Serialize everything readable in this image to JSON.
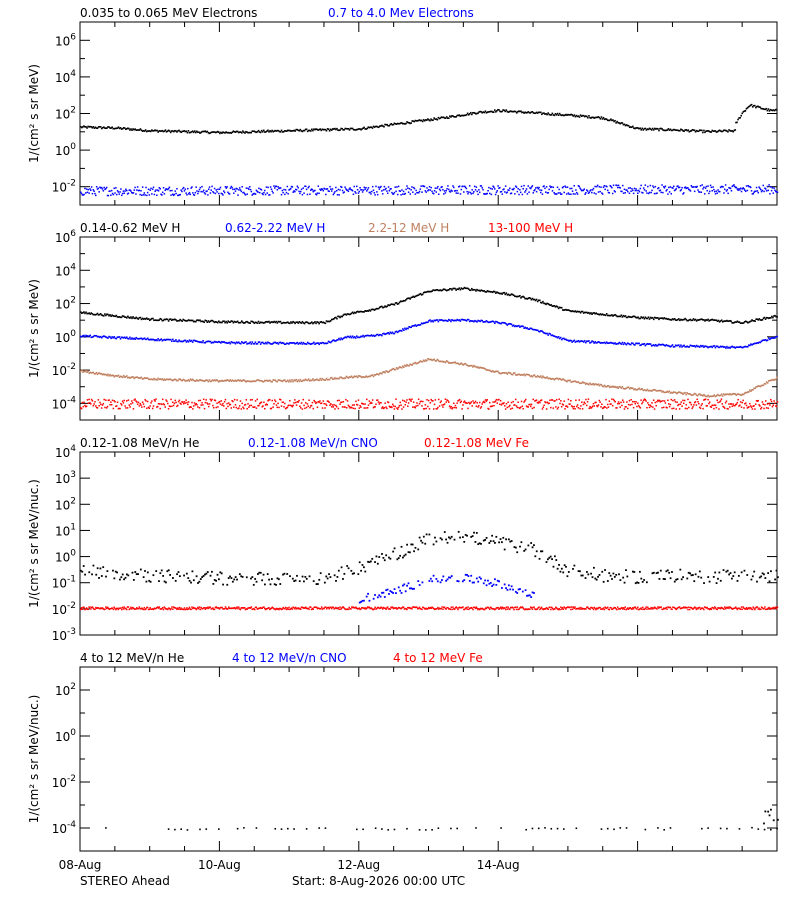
{
  "chart_data": [
    {
      "type": "scatter",
      "ylabel": "1/(cm² s sr MeV)",
      "yscale": "log",
      "ylim_log10": [
        -3,
        7
      ],
      "major_ticks": [
        {
          "exp": -2,
          "label": "10",
          "sup": "-2"
        },
        {
          "exp": 0,
          "label": "10",
          "sup": "0"
        },
        {
          "exp": 2,
          "label": "10",
          "sup": "2"
        },
        {
          "exp": 4,
          "label": "10",
          "sup": "4"
        },
        {
          "exp": 6,
          "label": "10",
          "sup": "6"
        }
      ],
      "series": [
        {
          "name": "0.035 to 0.065 MeV Electrons",
          "color": "#000000",
          "style": "line",
          "x": [
            0,
            0.5,
            1,
            2,
            2.5,
            3,
            4,
            4.5,
            5.2,
            5.7,
            6,
            7,
            7.5,
            8,
            8.5,
            9,
            9.4
          ],
          "y": [
            1.3,
            1.25,
            1.1,
            1.0,
            1.05,
            1.1,
            1.2,
            1.45,
            1.8,
            2.1,
            2.2,
            1.95,
            1.8,
            1.2,
            1.15,
            1.05,
            1.1
          ]
        },
        {
          "name": "",
          "color": "#000000",
          "style": "line",
          "x": [
            9.4,
            9.5,
            9.6,
            9.7,
            9.8,
            9.9,
            10.0
          ],
          "y": [
            1.5,
            2.1,
            2.5,
            2.4,
            2.3,
            2.2,
            2.2
          ]
        },
        {
          "name": "0.7 to 4.0 Mev Electrons",
          "color": "#0000ff",
          "style": "band",
          "x": [
            0,
            10
          ],
          "y": [
            -2.2,
            -2.1
          ],
          "spread": 0.25
        }
      ]
    },
    {
      "type": "scatter",
      "ylabel": "1/(cm² s sr MeV)",
      "yscale": "log",
      "ylim_log10": [
        -5,
        6
      ],
      "major_ticks": [
        {
          "exp": -4,
          "label": "10",
          "sup": "-4"
        },
        {
          "exp": -2,
          "label": "10",
          "sup": "-2"
        },
        {
          "exp": 0,
          "label": "10",
          "sup": "0"
        },
        {
          "exp": 2,
          "label": "10",
          "sup": "2"
        },
        {
          "exp": 4,
          "label": "10",
          "sup": "4"
        },
        {
          "exp": 6,
          "label": "10",
          "sup": "6"
        }
      ],
      "series": [
        {
          "name": "0.14-0.62 MeV H",
          "color": "#000000",
          "style": "line",
          "x": [
            0,
            0.5,
            1,
            2,
            3,
            3.5,
            3.8,
            4.2,
            4.5,
            5,
            5.5,
            6,
            6.5,
            7,
            7.5,
            8,
            8.5,
            9,
            9.5,
            10
          ],
          "y": [
            1.5,
            1.3,
            1.1,
            0.95,
            0.9,
            0.9,
            1.4,
            1.7,
            2.0,
            2.8,
            2.95,
            2.7,
            2.3,
            1.6,
            1.4,
            1.2,
            1.1,
            1.05,
            0.9,
            1.3
          ]
        },
        {
          "name": "0.62-2.22 MeV H",
          "color": "#0000ff",
          "style": "line",
          "x": [
            0,
            0.5,
            1,
            2,
            3,
            3.5,
            3.8,
            4.2,
            4.5,
            5,
            5.5,
            6,
            6.5,
            7,
            7.5,
            8,
            8.5,
            9,
            9.5,
            10
          ],
          "y": [
            0.1,
            0.0,
            -0.1,
            -0.3,
            -0.35,
            -0.35,
            0.0,
            0.1,
            0.3,
            1.0,
            1.05,
            0.9,
            0.5,
            -0.2,
            -0.3,
            -0.4,
            -0.5,
            -0.55,
            -0.6,
            0.1
          ]
        },
        {
          "name": "2.2-12 MeV H",
          "color": "#c08060",
          "style": "line",
          "x": [
            0,
            0.5,
            1,
            2,
            3,
            3.5,
            3.8,
            4.2,
            4.5,
            5,
            5.5,
            6,
            6.5,
            7,
            7.5,
            8,
            8.5,
            9,
            9.5,
            10
          ],
          "y": [
            -2.0,
            -2.3,
            -2.5,
            -2.6,
            -2.6,
            -2.5,
            -2.4,
            -2.3,
            -1.9,
            -1.3,
            -1.6,
            -2.1,
            -2.3,
            -2.6,
            -2.9,
            -3.1,
            -3.3,
            -3.5,
            -3.4,
            -2.4
          ]
        },
        {
          "name": "13-100 MeV H",
          "color": "#ff0000",
          "style": "band",
          "x": [
            0,
            10
          ],
          "y": [
            -4.0,
            -4.0
          ],
          "spread": 0.3
        }
      ]
    },
    {
      "type": "scatter",
      "ylabel": "1/(cm² s sr MeV/nuc.)",
      "yscale": "log",
      "ylim_log10": [
        -3,
        4
      ],
      "major_ticks": [
        {
          "exp": -3,
          "label": "10",
          "sup": "-3"
        },
        {
          "exp": -2,
          "label": "10",
          "sup": "-2"
        },
        {
          "exp": -1,
          "label": "10",
          "sup": "-1"
        },
        {
          "exp": 0,
          "label": "10",
          "sup": "0"
        },
        {
          "exp": 1,
          "label": "10",
          "sup": "1"
        },
        {
          "exp": 2,
          "label": "10",
          "sup": "2"
        },
        {
          "exp": 3,
          "label": "10",
          "sup": "3"
        },
        {
          "exp": 4,
          "label": "10",
          "sup": "4"
        }
      ],
      "series": [
        {
          "name": "0.12-1.08 MeV/n He",
          "color": "#000000",
          "style": "scatter",
          "x": [
            0,
            0.5,
            1,
            1.5,
            2,
            2.5,
            3,
            3.5,
            4,
            4.5,
            5,
            5.5,
            6,
            6.5,
            7,
            7.5,
            8,
            8.5,
            9,
            9.5,
            10
          ],
          "y": [
            -0.5,
            -0.6,
            -0.7,
            -0.75,
            -0.8,
            -0.8,
            -0.85,
            -0.8,
            -0.4,
            0.1,
            0.7,
            0.8,
            0.55,
            0.3,
            -0.5,
            -0.7,
            -0.75,
            -0.7,
            -0.75,
            -0.7,
            -0.7
          ],
          "spread": 0.25
        },
        {
          "name": "0.12-1.08 MeV/n CNO",
          "color": "#0000ff",
          "style": "scatter",
          "x": [
            4,
            4.5,
            5,
            5.5,
            6,
            6.5
          ],
          "y": [
            -1.6,
            -1.3,
            -0.85,
            -0.8,
            -1.0,
            -1.5
          ],
          "spread": 0.15
        },
        {
          "name": "0.12-1.08 MeV Fe",
          "color": "#ff0000",
          "style": "band",
          "x": [
            0,
            10
          ],
          "y": [
            -1.95,
            -1.95
          ],
          "spread": 0.05
        }
      ]
    },
    {
      "type": "scatter",
      "ylabel": "1/(cm² s sr MeV/nuc.)",
      "yscale": "log",
      "ylim_log10": [
        -5,
        3
      ],
      "major_ticks": [
        {
          "exp": -4,
          "label": "10",
          "sup": "-4"
        },
        {
          "exp": -2,
          "label": "10",
          "sup": "-2"
        },
        {
          "exp": 0,
          "label": "10",
          "sup": "0"
        },
        {
          "exp": 2,
          "label": "10",
          "sup": "2"
        }
      ],
      "series": [
        {
          "name": "4 to 12 MeV/n He",
          "color": "#000000",
          "style": "sparse",
          "x": [
            0,
            10
          ],
          "y": [
            -4.0,
            -4.0
          ],
          "spread": 0.05
        },
        {
          "name": "",
          "color": "#000000",
          "style": "scatter",
          "x": [
            9.8,
            9.9,
            10.0
          ],
          "y": [
            -3.5,
            -3.3,
            -3.4
          ],
          "spread": 0.3
        },
        {
          "name": "4 to 12 MeV/n CNO",
          "color": "#0000ff",
          "style": "none",
          "x": [],
          "y": []
        },
        {
          "name": "4 to 12 MeV Fe",
          "color": "#ff0000",
          "style": "none",
          "x": [],
          "y": []
        }
      ]
    }
  ],
  "x_axis": {
    "start": "8-Aug-2026",
    "days": 10,
    "major_tick_labels": [
      {
        "day": 0,
        "label": "08-Aug"
      },
      {
        "day": 2,
        "label": "10-Aug"
      },
      {
        "day": 4,
        "label": "12-Aug"
      },
      {
        "day": 6,
        "label": "14-Aug"
      }
    ]
  },
  "footer": {
    "spacecraft": "STEREO Ahead",
    "start_label": "Start:  8-Aug-2026 00:00 UTC"
  }
}
